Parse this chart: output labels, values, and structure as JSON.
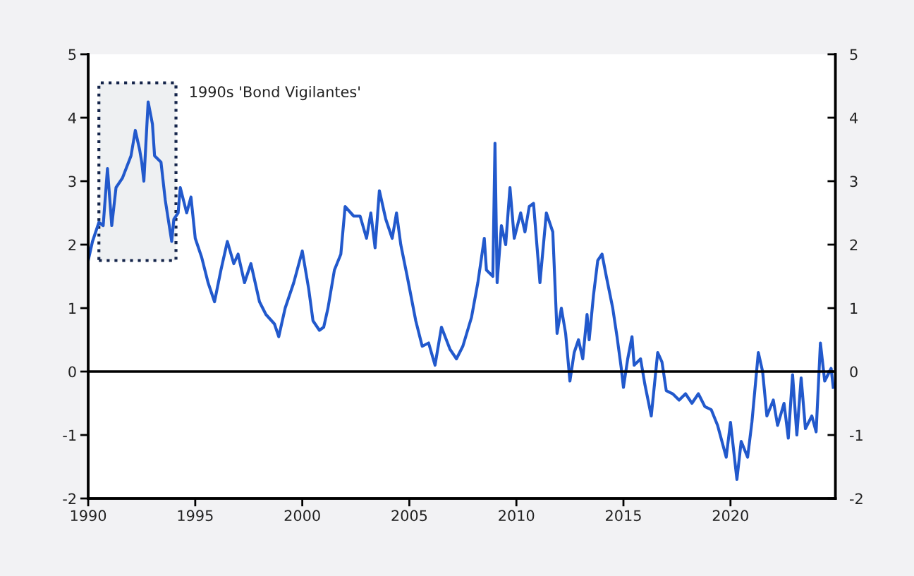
{
  "chart_data": {
    "type": "line",
    "x": [
      1990.0,
      1990.2,
      1990.5,
      1990.7,
      1990.9,
      1991.1,
      1991.3,
      1991.6,
      1992.0,
      1992.2,
      1992.4,
      1992.5,
      1992.6,
      1992.8,
      1993.0,
      1993.1,
      1993.4,
      1993.6,
      1993.9,
      1994.0,
      1994.2,
      1994.3,
      1994.6,
      1994.8,
      1995.0,
      1995.3,
      1995.6,
      1995.9,
      1996.2,
      1996.5,
      1996.8,
      1997.0,
      1997.3,
      1997.6,
      1998.0,
      1998.3,
      1998.7,
      1998.9,
      1999.2,
      1999.6,
      1999.8,
      2000.0,
      2000.3,
      2000.5,
      2000.8,
      2001.0,
      2001.2,
      2001.5,
      2001.8,
      2002.0,
      2002.4,
      2002.7,
      2003.0,
      2003.2,
      2003.4,
      2003.6,
      2003.9,
      2004.2,
      2004.4,
      2004.6,
      2004.9,
      2005.3,
      2005.6,
      2005.9,
      2006.2,
      2006.5,
      2006.9,
      2007.2,
      2007.5,
      2007.9,
      2008.2,
      2008.5,
      2008.6,
      2008.9,
      2009.0,
      2009.1,
      2009.3,
      2009.5,
      2009.7,
      2009.9,
      2010.2,
      2010.4,
      2010.6,
      2010.8,
      2011.1,
      2011.4,
      2011.6,
      2011.7,
      2011.9,
      2012.1,
      2012.3,
      2012.5,
      2012.7,
      2012.9,
      2013.1,
      2013.3,
      2013.4,
      2013.6,
      2013.8,
      2014.0,
      2014.2,
      2014.5,
      2014.7,
      2014.9,
      2015.0,
      2015.2,
      2015.4,
      2015.5,
      2015.8,
      2016.0,
      2016.3,
      2016.6,
      2016.8,
      2017.0,
      2017.3,
      2017.6,
      2017.9,
      2018.2,
      2018.5,
      2018.8,
      2019.1,
      2019.4,
      2019.8,
      2020.0,
      2020.3,
      2020.5,
      2020.8,
      2021.0,
      2021.3,
      2021.5,
      2021.7,
      2022.0,
      2022.2,
      2022.5,
      2022.7,
      2022.9,
      2023.1,
      2023.3,
      2023.5,
      2023.8,
      2024.0,
      2024.2,
      2024.4,
      2024.7,
      2024.8
    ],
    "series": [
      {
        "color": "#2259cc",
        "values": [
          1.75,
          2.05,
          2.35,
          2.3,
          3.2,
          2.3,
          2.9,
          3.05,
          3.4,
          3.8,
          3.5,
          3.3,
          3.0,
          4.25,
          3.9,
          3.4,
          3.3,
          2.7,
          2.05,
          2.4,
          2.5,
          2.9,
          2.5,
          2.75,
          2.1,
          1.8,
          1.4,
          1.1,
          1.6,
          2.05,
          1.7,
          1.85,
          1.4,
          1.7,
          1.1,
          0.9,
          0.75,
          0.55,
          1.0,
          1.4,
          1.65,
          1.9,
          1.3,
          0.8,
          0.65,
          0.7,
          1.0,
          1.6,
          1.85,
          2.6,
          2.45,
          2.45,
          2.1,
          2.5,
          1.95,
          2.85,
          2.4,
          2.1,
          2.5,
          2.0,
          1.5,
          0.8,
          0.4,
          0.45,
          0.1,
          0.7,
          0.35,
          0.2,
          0.4,
          0.85,
          1.4,
          2.1,
          1.6,
          1.5,
          3.6,
          1.4,
          2.3,
          2.0,
          2.9,
          2.1,
          2.5,
          2.2,
          2.6,
          2.65,
          1.4,
          2.5,
          2.3,
          2.2,
          0.6,
          1.0,
          0.6,
          -0.15,
          0.3,
          0.5,
          0.2,
          0.9,
          0.5,
          1.2,
          1.75,
          1.85,
          1.5,
          1.0,
          0.55,
          0.05,
          -0.25,
          0.2,
          0.55,
          0.1,
          0.2,
          -0.2,
          -0.7,
          0.3,
          0.15,
          -0.3,
          -0.35,
          -0.45,
          -0.35,
          -0.5,
          -0.35,
          -0.55,
          -0.6,
          -0.85,
          -1.35,
          -0.8,
          -1.7,
          -1.1,
          -1.35,
          -0.8,
          0.3,
          0.0,
          -0.7,
          -0.45,
          -0.85,
          -0.5,
          -1.05,
          -0.05,
          -1.0,
          -0.1,
          -0.9,
          -0.7,
          -0.95,
          0.45,
          -0.15,
          0.05,
          -0.25
        ]
      }
    ],
    "xlim": [
      1990,
      2024.9
    ],
    "xticks": [
      1990,
      1995,
      2000,
      2005,
      2010,
      2015,
      2020
    ],
    "ylim": [
      -2,
      5
    ],
    "yticks": [
      -2,
      -1,
      0,
      1,
      2,
      3,
      4,
      5
    ],
    "y2lim": [
      -2,
      5
    ],
    "y2ticks": [
      -2,
      -1,
      0,
      1,
      2,
      3,
      4,
      5
    ],
    "ref_lines": [
      {
        "axis": "y",
        "value": 0,
        "color": "#000000"
      }
    ],
    "bands": [
      {
        "axis": "x",
        "from": 1990.5,
        "to": 1994.1,
        "label": "1990s 'Bond Vigilantes'",
        "color": "#14244a"
      }
    ],
    "grid": false
  }
}
